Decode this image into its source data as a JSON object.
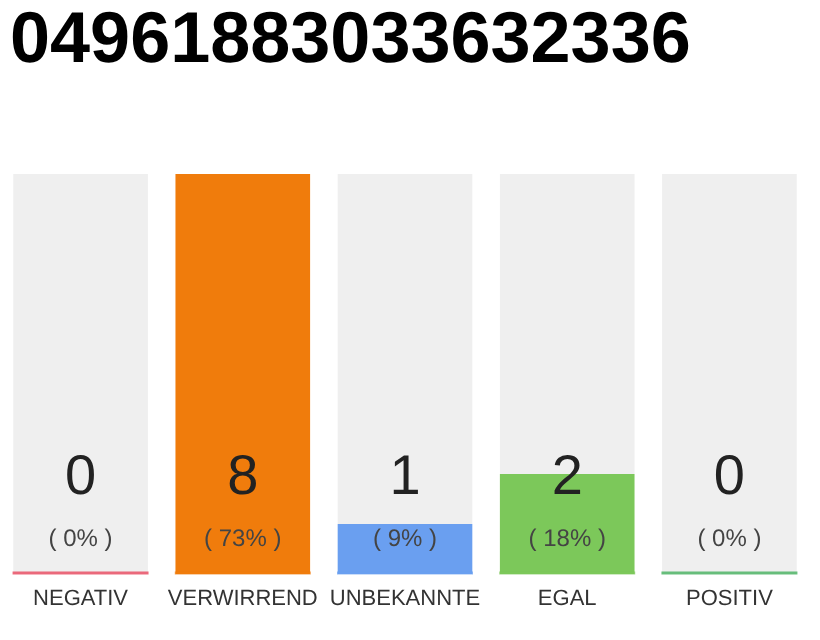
{
  "chart_data": {
    "type": "bar",
    "title": "04961883033632336",
    "categories": [
      "NEGATIV",
      "VERWIRREND",
      "UNBEKANNTE",
      "EGAL",
      "POSITIV"
    ],
    "stacked": true,
    "series": [
      {
        "colors": [
          "#e8314a",
          "#f07c0c",
          "#6a9ff0",
          "#7cc85a",
          "#2ea84a"
        ],
        "values": [
          0,
          8,
          1,
          2,
          0
        ],
        "value_labels": [
          "0",
          "8",
          "1",
          "2",
          "0"
        ]
      },
      {
        "color": "#efefef",
        "values": [
          8,
          0,
          7,
          6,
          8
        ],
        "value_labels": [
          null,
          null,
          null,
          null,
          null
        ]
      }
    ],
    "annotations": [
      "( 0% )",
      "( 73% )",
      "( 9% )",
      "( 18% )",
      "( 0% )"
    ]
  }
}
